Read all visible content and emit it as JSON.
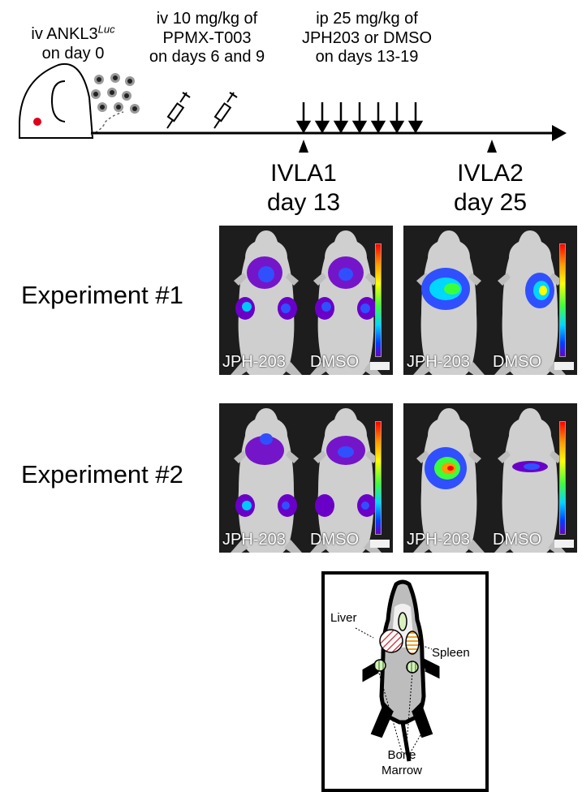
{
  "timeline": {
    "step1": {
      "line1_prefix": "iv ANKL3",
      "line1_sup": "Luc",
      "line2": "on day 0"
    },
    "step2": {
      "line1": "iv 10 mg/kg of",
      "line2": "PPMX-T003",
      "line3": "on days 6 and 9"
    },
    "step3": {
      "line1": "ip 25 mg/kg of",
      "line2": "JPH203 or DMSO",
      "line3": "on days 13-19"
    },
    "ivla1": {
      "name": "IVLA1",
      "day": "day 13"
    },
    "ivla2": {
      "name": "IVLA2",
      "day": "day 25"
    }
  },
  "experiments": [
    {
      "label": "Experiment #1",
      "day13": {
        "left": "JPH-203",
        "right": "DMSO"
      },
      "day25": {
        "left": "JPH-203",
        "right": "DMSO"
      }
    },
    {
      "label": "Experiment #2",
      "day13": {
        "left": "JPH-203",
        "right": "DMSO"
      },
      "day25": {
        "left": "JPH-203",
        "right": "DMSO"
      }
    }
  ],
  "anatomy": {
    "liver": "Liver",
    "spleen": "Spleen",
    "bone_marrow_line1": "Bone",
    "bone_marrow_line2": "Marrow"
  },
  "colors": {
    "tumor_dot": "#e0001b",
    "panel_bg": "#1d1d1d",
    "signal_purple": "#6a00c8"
  }
}
